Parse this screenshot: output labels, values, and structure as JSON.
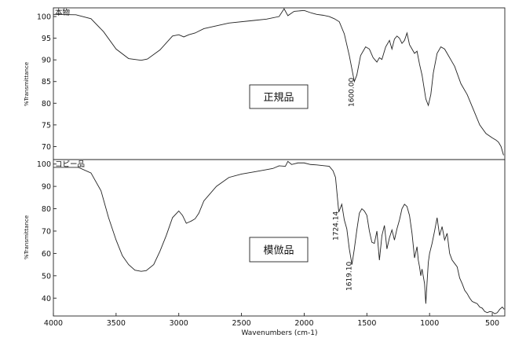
{
  "chart_data": [
    {
      "type": "line",
      "title": "本物",
      "box_label": "正規品",
      "ylabel": "%Transmittance",
      "yticks": [
        70,
        75,
        80,
        85,
        90,
        95,
        100
      ],
      "ylim": [
        67,
        102
      ],
      "xlim": [
        4000,
        400
      ],
      "peak_labels": [
        {
          "x": 1600,
          "text": "1600.00"
        }
      ],
      "series": [
        {
          "x": [
            4000,
            3820,
            3700,
            3600,
            3500,
            3400,
            3300,
            3250,
            3150,
            3050,
            3000,
            2960,
            2920,
            2870,
            2800,
            2600,
            2400,
            2300,
            2200,
            2160,
            2130,
            2080,
            2000,
            1940,
            1900,
            1850,
            1800,
            1760,
            1720,
            1680,
            1640,
            1600,
            1580,
            1550,
            1510,
            1480,
            1450,
            1420,
            1400,
            1380,
            1350,
            1320,
            1300,
            1280,
            1260,
            1240,
            1220,
            1200,
            1180,
            1160,
            1140,
            1120,
            1100,
            1080,
            1060,
            1030,
            1010,
            990,
            970,
            940,
            910,
            880,
            850,
            820,
            800,
            750,
            700,
            650,
            600,
            550,
            500,
            470,
            450,
            430,
            410
          ],
          "y": [
            100.5,
            100.4,
            99.5,
            96.5,
            92.5,
            90.3,
            89.9,
            90.2,
            92.3,
            95.5,
            95.8,
            95.3,
            95.8,
            96.2,
            97.2,
            98.5,
            99.1,
            99.4,
            100,
            101.8,
            100.2,
            101.2,
            101.4,
            100.8,
            100.5,
            100.3,
            100,
            99.5,
            98.8,
            96,
            91,
            85,
            86.5,
            91,
            93,
            92.5,
            90.5,
            89.5,
            90.5,
            90.1,
            93,
            94.5,
            92.5,
            94.8,
            95.5,
            95,
            93.8,
            94.5,
            96.2,
            93.5,
            92.5,
            91.5,
            92,
            89,
            86.5,
            81,
            79.5,
            82,
            87,
            91.5,
            93,
            92.5,
            91,
            89.5,
            88.5,
            84.5,
            82,
            78.5,
            75,
            73,
            72,
            71.5,
            71,
            70,
            68
          ]
        }
      ]
    },
    {
      "type": "line",
      "title": "コピー品",
      "box_label": "模倣品",
      "ylabel": "%Transmittance",
      "xlabel": "Wavenumbers (cm-1)",
      "yticks": [
        40,
        50,
        60,
        70,
        80,
        90,
        100
      ],
      "ylim": [
        32,
        102
      ],
      "xlim": [
        4000,
        400
      ],
      "xticks": [
        4000,
        3500,
        3000,
        2500,
        2000,
        1500,
        1000,
        500
      ],
      "peak_labels": [
        {
          "x": 1724.14,
          "text": "1724.14"
        },
        {
          "x": 1619.1,
          "text": "1619.10"
        }
      ],
      "series": [
        {
          "x": [
            4000,
            3800,
            3700,
            3620,
            3560,
            3500,
            3450,
            3400,
            3350,
            3300,
            3260,
            3200,
            3150,
            3100,
            3050,
            3000,
            2970,
            2940,
            2920,
            2900,
            2870,
            2840,
            2800,
            2700,
            2600,
            2500,
            2400,
            2300,
            2250,
            2200,
            2150,
            2130,
            2100,
            2050,
            2000,
            1950,
            1900,
            1850,
            1800,
            1770,
            1750,
            1724,
            1700,
            1680,
            1660,
            1640,
            1619,
            1600,
            1580,
            1560,
            1540,
            1520,
            1500,
            1480,
            1460,
            1440,
            1420,
            1400,
            1380,
            1360,
            1340,
            1320,
            1300,
            1280,
            1260,
            1240,
            1220,
            1200,
            1180,
            1160,
            1140,
            1120,
            1100,
            1090,
            1080,
            1070,
            1060,
            1040,
            1030,
            1020,
            1010,
            1000,
            980,
            960,
            940,
            920,
            900,
            880,
            860,
            840,
            820,
            800,
            780,
            760,
            740,
            720,
            700,
            680,
            660,
            640,
            620,
            600,
            580,
            560,
            540,
            520,
            500,
            480,
            460,
            440,
            420,
            405
          ],
          "y": [
            98.5,
            98.5,
            96,
            88,
            76,
            66,
            59,
            55,
            52.5,
            52,
            52.3,
            55,
            61,
            68,
            76,
            79,
            77,
            73.5,
            74,
            74.5,
            75.5,
            78,
            83.5,
            90,
            94,
            95.5,
            96.5,
            97.5,
            98,
            99.2,
            99,
            101.2,
            99.8,
            100.5,
            100.5,
            99.8,
            99.6,
            99.3,
            99,
            97,
            94,
            78.5,
            82,
            75,
            71,
            62,
            55,
            62,
            70.5,
            78,
            80,
            79,
            77,
            70,
            65,
            64.5,
            70,
            57,
            68,
            72.5,
            62,
            67,
            70.5,
            66,
            71,
            75,
            80,
            82,
            81,
            77,
            69,
            58,
            63,
            57,
            54,
            50,
            53,
            46.5,
            37.5,
            47,
            56,
            60,
            64.5,
            70,
            76,
            68,
            72,
            66,
            69,
            60,
            57,
            55.5,
            54,
            49,
            46.5,
            43.5,
            42,
            40,
            38.5,
            38,
            37.5,
            36,
            35.5,
            34,
            33.5,
            34,
            33.8,
            33,
            33.5,
            35,
            36,
            35
          ]
        }
      ]
    }
  ]
}
